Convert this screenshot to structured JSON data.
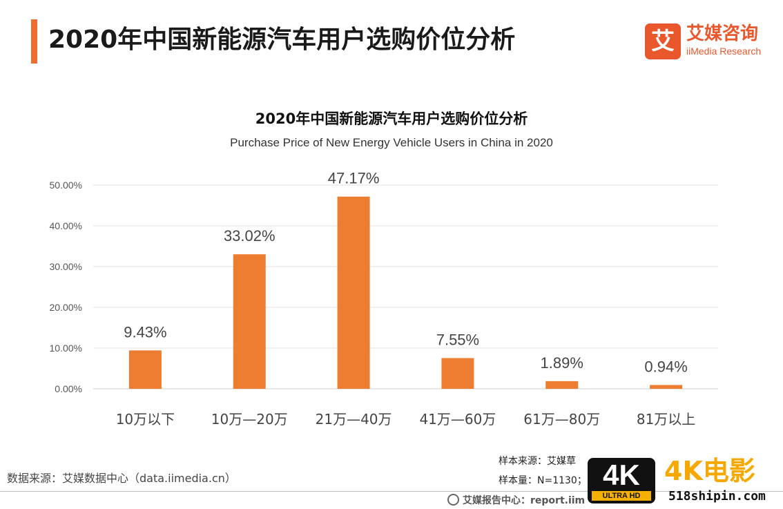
{
  "header": {
    "title": "2020年中国新能源汽车用户选购价位分析",
    "logo_mark": "艾",
    "logo_cn": "艾媒咨询",
    "logo_en": "iiMedia Research"
  },
  "colors": {
    "accent": "#ee6f2d",
    "bar": "#ed7d31",
    "logo": "#e9572c"
  },
  "chart_data": {
    "type": "bar",
    "title": "2020年中国新能源汽车用户选购价位分析",
    "subtitle": "Purchase Price of New Energy Vehicle Users in China in 2020",
    "categories": [
      "10万以下",
      "10万—20万",
      "21万—40万",
      "41万—60万",
      "61万—80万",
      "81万以上"
    ],
    "values": [
      9.43,
      33.02,
      47.17,
      7.55,
      1.89,
      0.94
    ],
    "data_labels": [
      "9.43%",
      "33.02%",
      "47.17%",
      "7.55%",
      "1.89%",
      "0.94%"
    ],
    "y_ticks": [
      0,
      10,
      20,
      30,
      40,
      50
    ],
    "y_tick_labels": [
      "0.00%",
      "10.00%",
      "20.00%",
      "30.00%",
      "40.00%",
      "50.00%"
    ],
    "ylim": [
      0,
      50
    ],
    "grid": true,
    "legend": "none"
  },
  "footer": {
    "source": "数据来源：艾媒数据中心（data.iimedia.cn）",
    "sample_source": "样本来源：艾媒草",
    "sample_size": "样本量：N=1130；",
    "report_center": "艾媒报告中心：report.iim"
  },
  "watermark": {
    "badge_main": "4K",
    "badge_sub": "ULTRA HD",
    "text": "4K电影",
    "url": "518shipin.com"
  }
}
